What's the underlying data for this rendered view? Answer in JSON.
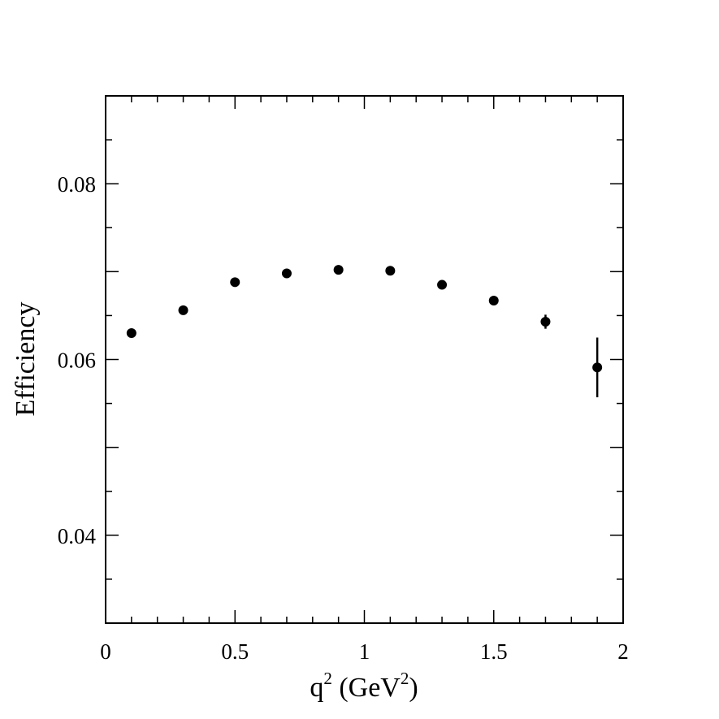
{
  "chart_data": {
    "type": "scatter",
    "xlabel": {
      "base": "q",
      "exp1": "2",
      "mid": " (GeV",
      "exp2": "2",
      "end": ")"
    },
    "ylabel": "Efficiency",
    "xlim": [
      0,
      2
    ],
    "ylim": [
      0.03,
      0.09
    ],
    "x_ticks": [
      {
        "value": 0,
        "label": "0"
      },
      {
        "value": 0.5,
        "label": "0.5"
      },
      {
        "value": 1,
        "label": "1"
      },
      {
        "value": 1.5,
        "label": "1.5"
      },
      {
        "value": 2,
        "label": "2"
      }
    ],
    "y_ticks": [
      {
        "value": 0.04,
        "label": "0.04"
      },
      {
        "value": 0.06,
        "label": "0.06"
      },
      {
        "value": 0.08,
        "label": "0.08"
      }
    ],
    "x_minor_step": 0.1,
    "y_minor_step": 0.005,
    "grid": false,
    "series": [
      {
        "x": [
          0.1,
          0.3,
          0.5,
          0.7,
          0.9,
          1.1,
          1.3,
          1.5,
          1.7,
          1.9
        ],
        "y": [
          0.063,
          0.0656,
          0.0688,
          0.0698,
          0.0702,
          0.0701,
          0.0685,
          0.0667,
          0.0643,
          0.0591
        ],
        "yerr": [
          0.0004,
          0.0004,
          0.0004,
          0.0004,
          0.0004,
          0.0004,
          0.0004,
          0.0004,
          0.0008,
          0.0034
        ]
      }
    ],
    "marker_color": "#000000"
  }
}
